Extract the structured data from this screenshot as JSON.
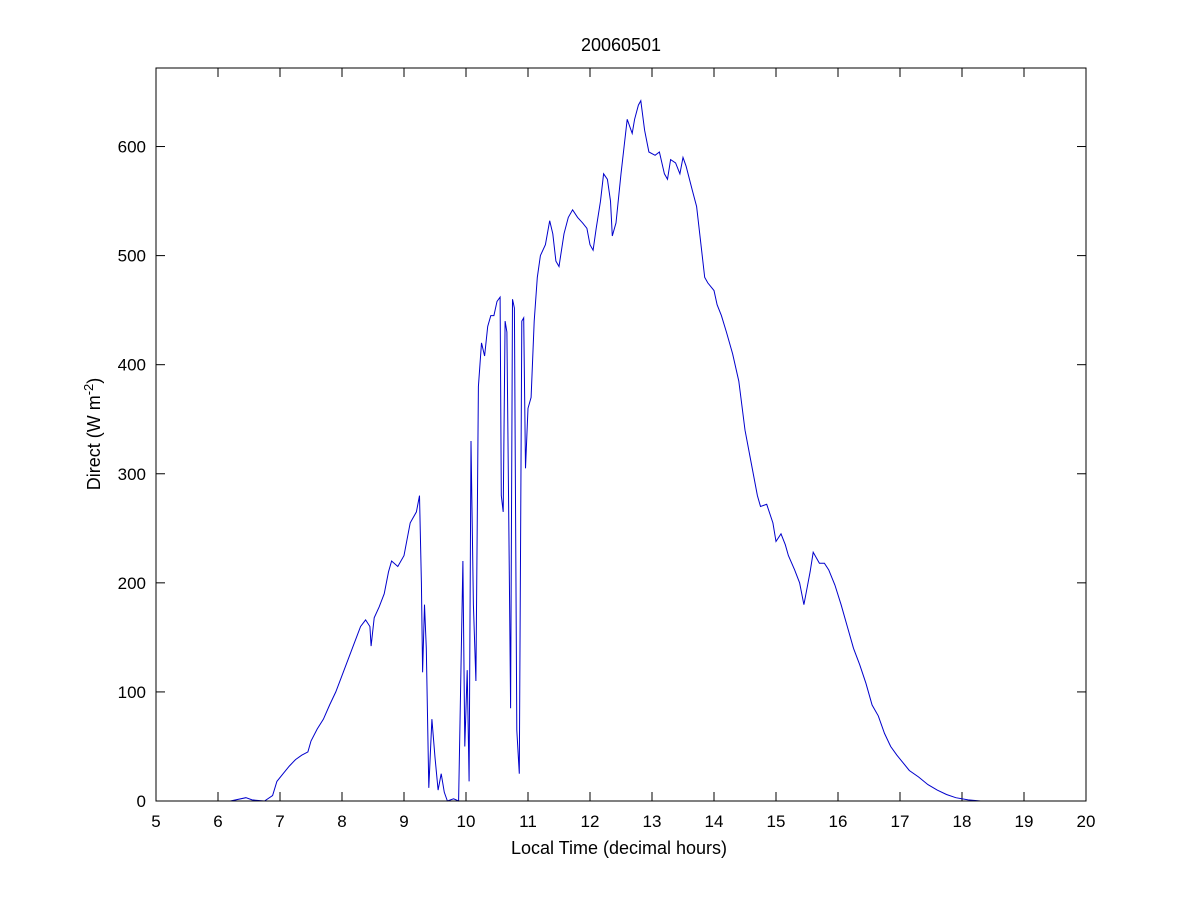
{
  "chart_data": {
    "type": "line",
    "title": "20060501",
    "xlabel": "Local Time (decimal hours)",
    "ylabel": {
      "base": "Direct (W m",
      "superscript": "-2",
      "suffix": ")"
    },
    "xlim": [
      5,
      20
    ],
    "ylim": [
      0,
      672
    ],
    "xticks": [
      "5",
      "6",
      "7",
      "8",
      "9",
      "10",
      "11",
      "12",
      "13",
      "14",
      "15",
      "16",
      "17",
      "18",
      "19",
      "20"
    ],
    "yticks": [
      "0",
      "100",
      "200",
      "300",
      "400",
      "500",
      "600"
    ],
    "grid": false,
    "legend": "none",
    "series": [
      {
        "color": "#0000cc",
        "points": [
          [
            5.33,
            0
          ],
          [
            5.8,
            0
          ],
          [
            6.2,
            0
          ],
          [
            6.45,
            3
          ],
          [
            6.55,
            1
          ],
          [
            6.75,
            0
          ],
          [
            6.88,
            5
          ],
          [
            6.95,
            18
          ],
          [
            7.05,
            25
          ],
          [
            7.15,
            32
          ],
          [
            7.25,
            38
          ],
          [
            7.35,
            42
          ],
          [
            7.45,
            45
          ],
          [
            7.5,
            55
          ],
          [
            7.6,
            66
          ],
          [
            7.7,
            75
          ],
          [
            7.8,
            88
          ],
          [
            7.9,
            100
          ],
          [
            8.0,
            115
          ],
          [
            8.1,
            130
          ],
          [
            8.2,
            145
          ],
          [
            8.3,
            160
          ],
          [
            8.38,
            166
          ],
          [
            8.45,
            160
          ],
          [
            8.47,
            142
          ],
          [
            8.52,
            168
          ],
          [
            8.6,
            178
          ],
          [
            8.68,
            190
          ],
          [
            8.75,
            210
          ],
          [
            8.8,
            220
          ],
          [
            8.9,
            215
          ],
          [
            9.0,
            225
          ],
          [
            9.05,
            240
          ],
          [
            9.1,
            255
          ],
          [
            9.2,
            265
          ],
          [
            9.25,
            280
          ],
          [
            9.28,
            200
          ],
          [
            9.3,
            118
          ],
          [
            9.33,
            180
          ],
          [
            9.36,
            140
          ],
          [
            9.4,
            12
          ],
          [
            9.45,
            75
          ],
          [
            9.5,
            40
          ],
          [
            9.55,
            10
          ],
          [
            9.6,
            25
          ],
          [
            9.65,
            8
          ],
          [
            9.7,
            0
          ],
          [
            9.8,
            2
          ],
          [
            9.88,
            0
          ],
          [
            9.95,
            220
          ],
          [
            9.98,
            50
          ],
          [
            10.02,
            120
          ],
          [
            10.05,
            18
          ],
          [
            10.08,
            330
          ],
          [
            10.12,
            180
          ],
          [
            10.16,
            110
          ],
          [
            10.2,
            380
          ],
          [
            10.25,
            420
          ],
          [
            10.3,
            408
          ],
          [
            10.35,
            435
          ],
          [
            10.4,
            445
          ],
          [
            10.45,
            445
          ],
          [
            10.5,
            458
          ],
          [
            10.55,
            462
          ],
          [
            10.57,
            280
          ],
          [
            10.6,
            265
          ],
          [
            10.63,
            440
          ],
          [
            10.66,
            430
          ],
          [
            10.7,
            200
          ],
          [
            10.72,
            85
          ],
          [
            10.75,
            460
          ],
          [
            10.78,
            452
          ],
          [
            10.82,
            65
          ],
          [
            10.86,
            25
          ],
          [
            10.9,
            440
          ],
          [
            10.93,
            443
          ],
          [
            10.96,
            305
          ],
          [
            11.0,
            360
          ],
          [
            11.05,
            370
          ],
          [
            11.1,
            440
          ],
          [
            11.15,
            480
          ],
          [
            11.2,
            500
          ],
          [
            11.28,
            510
          ],
          [
            11.35,
            532
          ],
          [
            11.4,
            520
          ],
          [
            11.45,
            495
          ],
          [
            11.5,
            490
          ],
          [
            11.58,
            520
          ],
          [
            11.65,
            535
          ],
          [
            11.72,
            542
          ],
          [
            11.8,
            535
          ],
          [
            11.88,
            530
          ],
          [
            11.95,
            525
          ],
          [
            12.0,
            510
          ],
          [
            12.05,
            505
          ],
          [
            12.1,
            525
          ],
          [
            12.17,
            550
          ],
          [
            12.22,
            575
          ],
          [
            12.28,
            570
          ],
          [
            12.33,
            550
          ],
          [
            12.36,
            518
          ],
          [
            12.42,
            530
          ],
          [
            12.5,
            575
          ],
          [
            12.55,
            600
          ],
          [
            12.6,
            625
          ],
          [
            12.68,
            612
          ],
          [
            12.72,
            625
          ],
          [
            12.78,
            638
          ],
          [
            12.82,
            642
          ],
          [
            12.88,
            615
          ],
          [
            12.95,
            595
          ],
          [
            13.05,
            592
          ],
          [
            13.12,
            595
          ],
          [
            13.2,
            575
          ],
          [
            13.25,
            570
          ],
          [
            13.3,
            588
          ],
          [
            13.38,
            585
          ],
          [
            13.45,
            575
          ],
          [
            13.5,
            590
          ],
          [
            13.55,
            582
          ],
          [
            13.65,
            560
          ],
          [
            13.72,
            545
          ],
          [
            13.8,
            505
          ],
          [
            13.85,
            480
          ],
          [
            13.9,
            475
          ],
          [
            14.0,
            468
          ],
          [
            14.05,
            455
          ],
          [
            14.12,
            445
          ],
          [
            14.2,
            430
          ],
          [
            14.3,
            410
          ],
          [
            14.4,
            385
          ],
          [
            14.5,
            340
          ],
          [
            14.6,
            310
          ],
          [
            14.7,
            280
          ],
          [
            14.75,
            270
          ],
          [
            14.85,
            272
          ],
          [
            14.95,
            255
          ],
          [
            15.0,
            238
          ],
          [
            15.08,
            245
          ],
          [
            15.15,
            235
          ],
          [
            15.2,
            225
          ],
          [
            15.3,
            212
          ],
          [
            15.38,
            200
          ],
          [
            15.45,
            180
          ],
          [
            15.5,
            195
          ],
          [
            15.55,
            210
          ],
          [
            15.6,
            228
          ],
          [
            15.7,
            218
          ],
          [
            15.78,
            218
          ],
          [
            15.85,
            212
          ],
          [
            15.9,
            205
          ],
          [
            15.95,
            198
          ],
          [
            16.05,
            180
          ],
          [
            16.15,
            160
          ],
          [
            16.25,
            140
          ],
          [
            16.35,
            125
          ],
          [
            16.45,
            108
          ],
          [
            16.55,
            88
          ],
          [
            16.65,
            78
          ],
          [
            16.75,
            62
          ],
          [
            16.85,
            50
          ],
          [
            16.95,
            42
          ],
          [
            17.05,
            35
          ],
          [
            17.15,
            28
          ],
          [
            17.3,
            22
          ],
          [
            17.45,
            15
          ],
          [
            17.6,
            10
          ],
          [
            17.75,
            6
          ],
          [
            17.9,
            3
          ],
          [
            18.1,
            1
          ],
          [
            18.3,
            0
          ],
          [
            18.65,
            0
          ]
        ]
      }
    ]
  }
}
